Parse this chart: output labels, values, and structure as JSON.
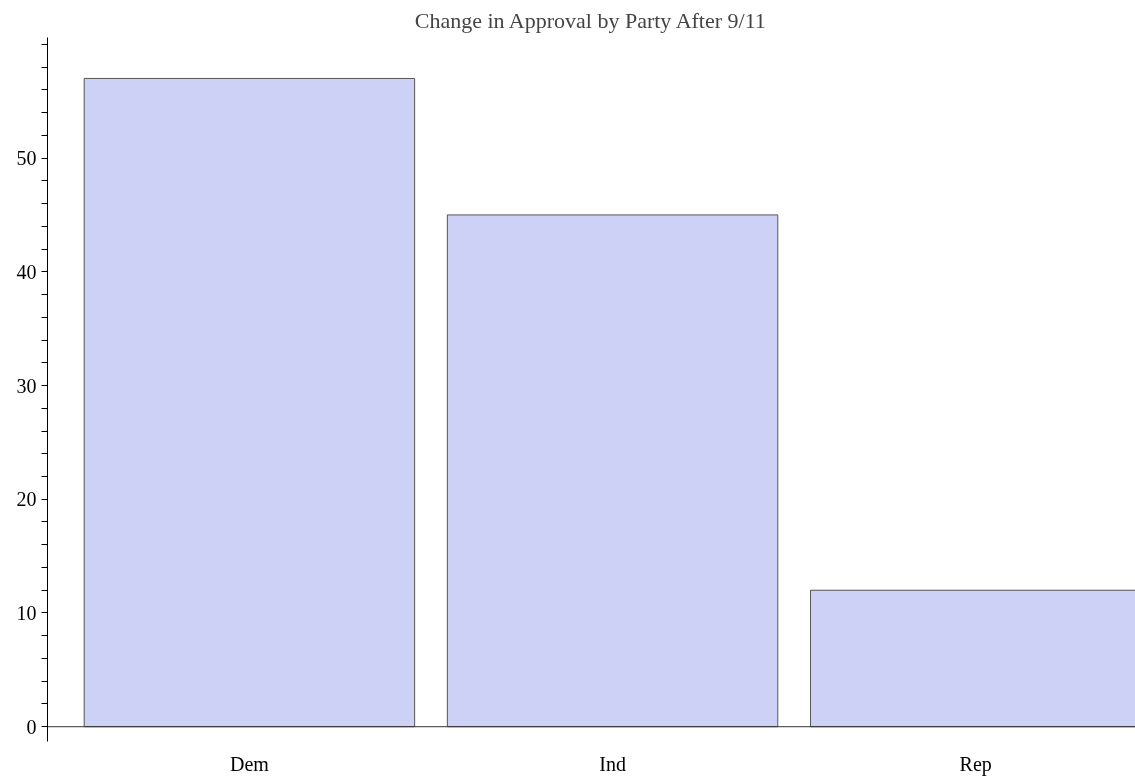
{
  "chart_data": {
    "type": "bar",
    "title": "Change in Approval by Party After 9/11",
    "categories": [
      "Dem",
      "Ind",
      "Rep"
    ],
    "values": [
      57,
      45,
      12
    ],
    "color": "#ccd1f5",
    "ylim": [
      -1.3,
      60.6
    ],
    "yticks": [
      0,
      {
        "value": 2,
        "label": null
      },
      {
        "value": 4,
        "label": null
      },
      {
        "value": 6,
        "label": null
      },
      {
        "value": 8,
        "label": null
      },
      10,
      {
        "value": 12,
        "label": null
      },
      {
        "value": 14,
        "label": null
      },
      {
        "value": 16,
        "label": null
      },
      {
        "value": 18,
        "label": null
      },
      20,
      {
        "value": 22,
        "label": null
      },
      {
        "value": 24,
        "label": null
      },
      {
        "value": 26,
        "label": null
      },
      {
        "value": 28,
        "label": null
      },
      30,
      {
        "value": 32,
        "label": null
      },
      {
        "value": 34,
        "label": null
      },
      {
        "value": 36,
        "label": null
      },
      {
        "value": 38,
        "label": null
      },
      40,
      {
        "value": 42,
        "label": null
      },
      {
        "value": 44,
        "label": null
      },
      {
        "value": 46,
        "label": null
      },
      {
        "value": 48,
        "label": null
      },
      50,
      {
        "value": 52,
        "label": null
      },
      {
        "value": 54,
        "label": null
      },
      {
        "value": 56,
        "label": null
      },
      {
        "value": 58,
        "label": null
      },
      {
        "value": 60,
        "label": null
      }
    ],
    "grid": false
  }
}
